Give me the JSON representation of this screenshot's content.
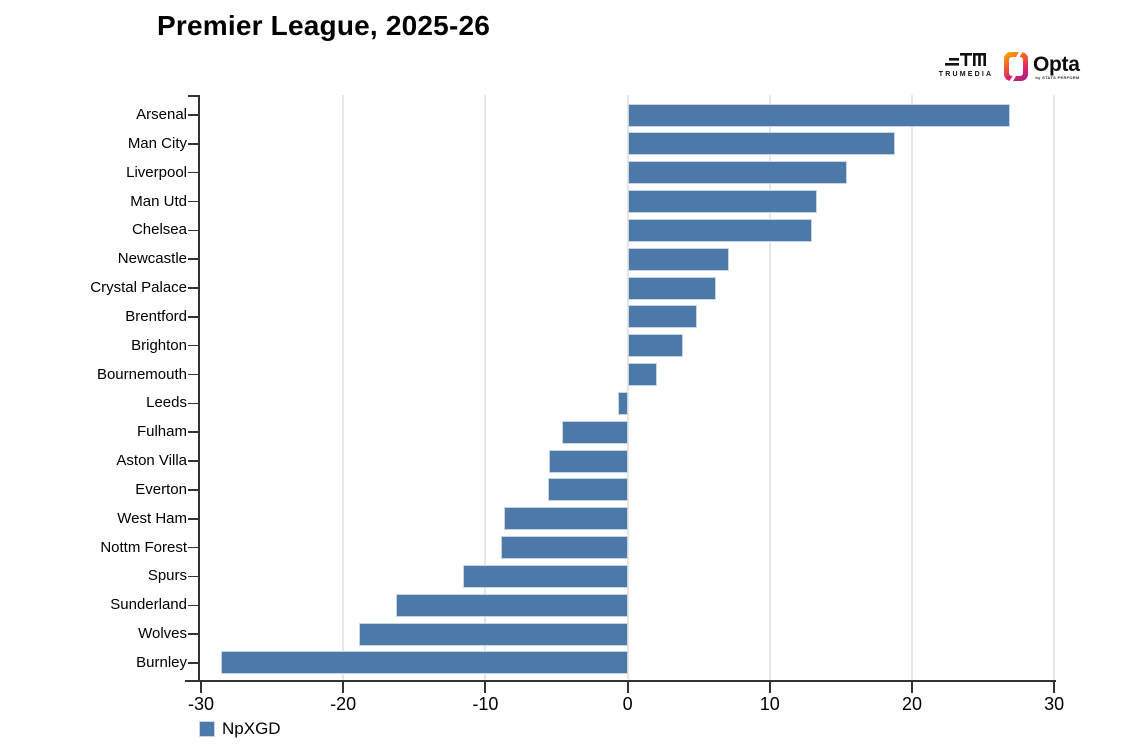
{
  "title": "Premier League, 2025-26",
  "branding": {
    "trumedia_label": "TRUMEDIA",
    "opta_label": "Opta",
    "opta_sub": "by STATS PERFORM"
  },
  "legend": {
    "label": "NpXGD"
  },
  "colors": {
    "bar_fill": "#4d79a8",
    "bar_border": "#c6d4e3",
    "axis": "#333333",
    "gridline": "#e7e7e7"
  },
  "chart_data": {
    "type": "bar",
    "orientation": "horizontal",
    "title": "Premier League, 2025-26",
    "xlabel": "",
    "ylabel": "",
    "xlim": [
      -30,
      30
    ],
    "x_ticks": [
      -30,
      -20,
      -10,
      0,
      10,
      20,
      30
    ],
    "grid": true,
    "legend_position": "bottom-left",
    "series_name": "NpXGD",
    "categories": [
      "Arsenal",
      "Man City",
      "Liverpool",
      "Man Utd",
      "Chelsea",
      "Newcastle",
      "Crystal Palace",
      "Brentford",
      "Brighton",
      "Bournemouth",
      "Leeds",
      "Fulham",
      "Aston Villa",
      "Everton",
      "West Ham",
      "Nottm Forest",
      "Spurs",
      "Sunderland",
      "Wolves",
      "Burnley"
    ],
    "values": [
      26.9,
      18.8,
      15.4,
      13.3,
      13.0,
      7.1,
      6.2,
      4.9,
      3.9,
      2.1,
      -0.7,
      -4.6,
      -5.5,
      -5.6,
      -8.7,
      -8.9,
      -11.6,
      -16.3,
      -18.9,
      -28.6
    ]
  }
}
